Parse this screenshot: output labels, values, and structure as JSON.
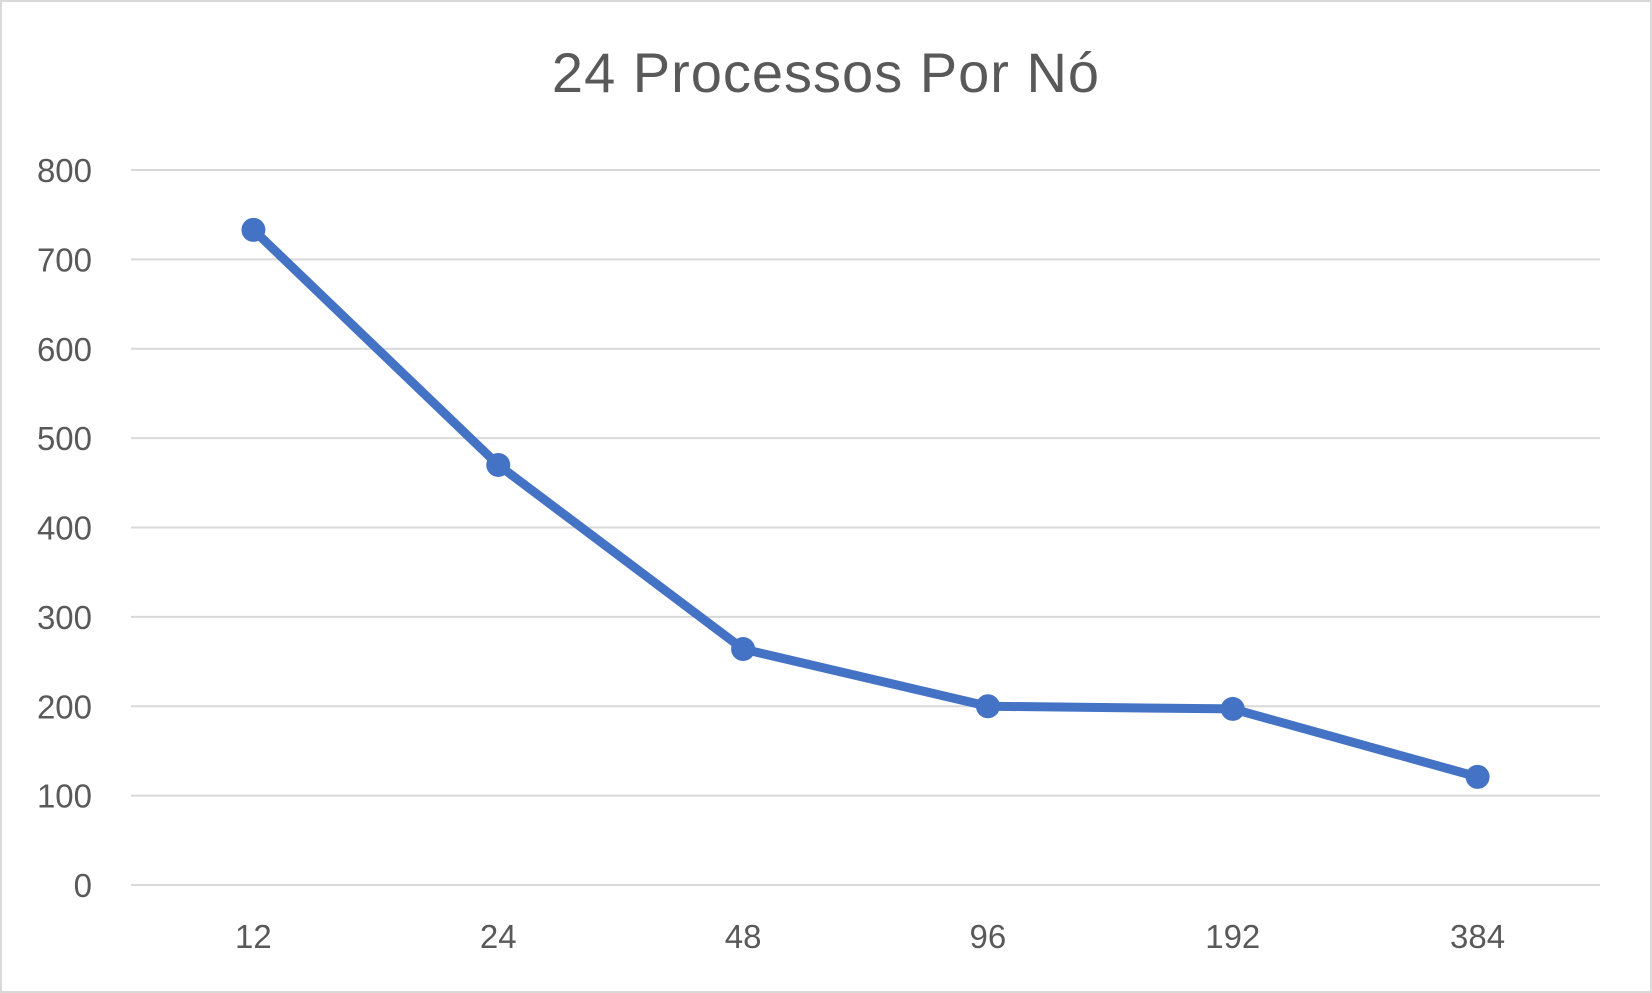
{
  "chart_data": {
    "type": "line",
    "title": "24 Processos Por Nó",
    "xlabel": "",
    "ylabel": "",
    "categories": [
      "12",
      "24",
      "48",
      "96",
      "192",
      "384"
    ],
    "series": [
      {
        "values": [
          733,
          470,
          264,
          200,
          197,
          121
        ],
        "color": "#4472c4"
      }
    ],
    "ylim": [
      0,
      800
    ],
    "yticks": [
      "0",
      "100",
      "200",
      "300",
      "400",
      "500",
      "600",
      "700",
      "800"
    ],
    "grid": true,
    "legend": "none"
  }
}
